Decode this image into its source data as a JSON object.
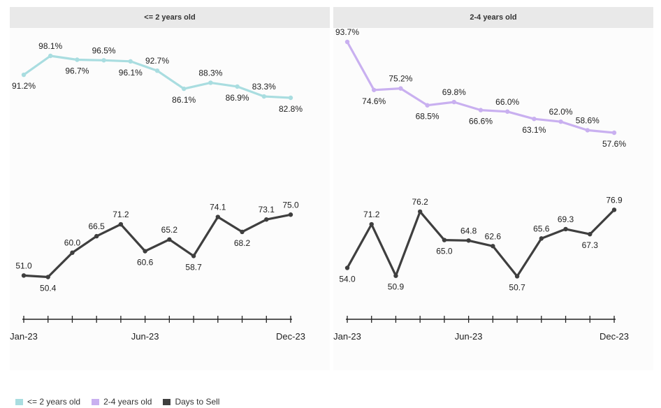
{
  "colors": {
    "age_0_2": "#a9dde0",
    "age_2_4": "#c9b0f0",
    "days": "#3f3f3f"
  },
  "legend": [
    {
      "label": "<= 2 years old",
      "color": "#a9dde0"
    },
    {
      "label": "2-4 years old",
      "color": "#c9b0f0"
    },
    {
      "label": "Days to Sell",
      "color": "#3f3f3f"
    }
  ],
  "chart_data": [
    {
      "type": "line",
      "title": "<= 2 years old",
      "tick_labels": [
        "Jan-23",
        "Jun-23",
        "Dec-23"
      ],
      "series": [
        {
          "name": "<= 2 years old",
          "values": [
            91.2,
            98.1,
            96.7,
            96.5,
            96.1,
            92.7,
            86.1,
            88.3,
            86.9,
            83.3,
            82.8
          ],
          "labels": [
            "91.2%",
            "98.1%",
            "96.7%",
            "96.5%",
            "96.1%",
            "92.7%",
            "86.1%",
            "88.3%",
            "86.9%",
            "83.3%",
            "82.8%"
          ]
        },
        {
          "name": "Days to Sell",
          "values": [
            51.0,
            50.4,
            60.0,
            66.5,
            71.2,
            60.6,
            65.2,
            58.7,
            74.1,
            68.2,
            73.1,
            75.0
          ],
          "labels": [
            "51.0",
            "50.4",
            "60.0",
            "66.5",
            "71.2",
            "60.6",
            "65.2",
            "58.7",
            "74.1",
            "68.2",
            "73.1",
            "75.0"
          ]
        }
      ]
    },
    {
      "type": "line",
      "title": "2-4 years old",
      "tick_labels": [
        "Jan-23",
        "Jun-23",
        "Dec-23"
      ],
      "series": [
        {
          "name": "2-4 years old",
          "values": [
            93.7,
            74.6,
            75.2,
            68.5,
            69.8,
            66.6,
            66.0,
            63.1,
            62.0,
            58.6,
            57.6
          ],
          "labels": [
            "93.7%",
            "74.6%",
            "75.2%",
            "68.5%",
            "69.8%",
            "66.6%",
            "66.0%",
            "63.1%",
            "62.0%",
            "58.6%",
            "57.6%"
          ]
        },
        {
          "name": "Days to Sell",
          "values": [
            54.0,
            71.2,
            50.9,
            76.2,
            65.0,
            64.8,
            62.6,
            50.7,
            65.6,
            69.3,
            67.3,
            76.9
          ],
          "labels": [
            "54.0",
            "71.2",
            "50.9",
            "76.2",
            "65.0",
            "64.8",
            "62.6",
            "50.7",
            "65.6",
            "69.3",
            "67.3",
            "76.9"
          ]
        }
      ]
    }
  ]
}
